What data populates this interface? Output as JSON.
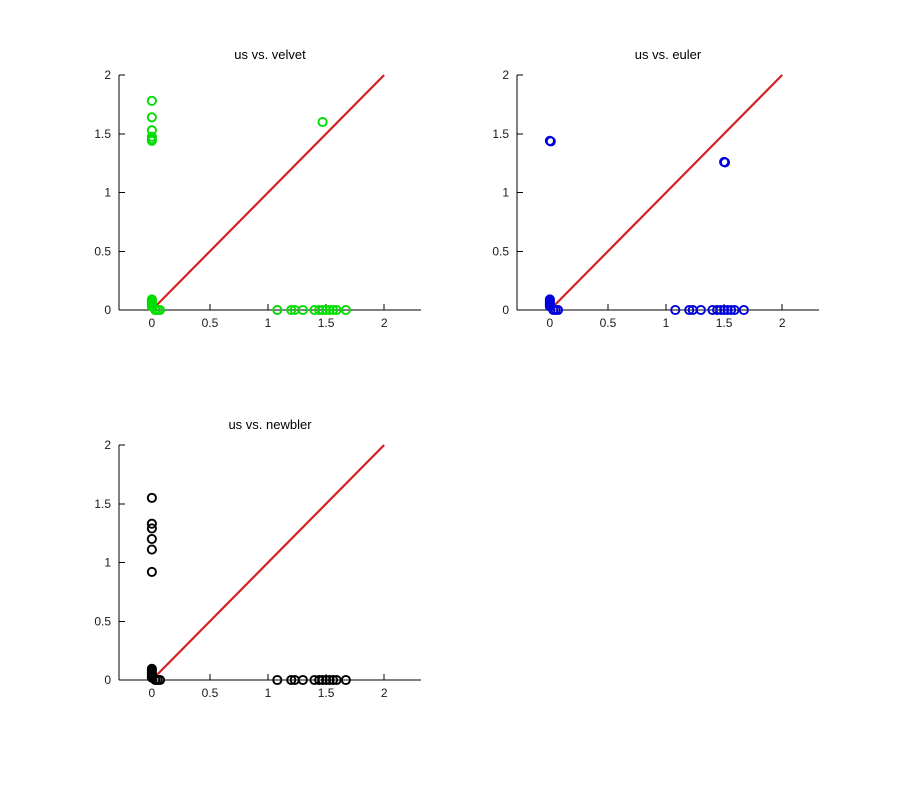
{
  "figure": {
    "background": "#ffffff",
    "axis_color": "#000000",
    "tick_label_color": "#1a1a1a",
    "layout": "2x2 subplot grid, bottom-right cell empty"
  },
  "chart_data": [
    {
      "type": "scatter",
      "title": "us vs. velvet",
      "xlabel": "",
      "ylabel": "",
      "xlim": [
        -0.283,
        2.317
      ],
      "ylim": [
        0,
        2
      ],
      "xticks": [
        0,
        0.5,
        1,
        1.5,
        2
      ],
      "xtick_labels": [
        "0",
        "0.5",
        "1",
        "1.5",
        "2"
      ],
      "yticks": [
        0,
        0.5,
        1,
        1.5,
        2
      ],
      "ytick_labels": [
        "0",
        "0.5",
        "1",
        "1.5",
        "2"
      ],
      "grid": false,
      "legend": null,
      "marker": {
        "shape": "hollow-circle",
        "color": "#00DD00"
      },
      "identity_line": {
        "from": [
          0,
          0
        ],
        "to": [
          2,
          2
        ],
        "color": "#D42121"
      },
      "points": [
        [
          0,
          0.03
        ],
        [
          0,
          0.045
        ],
        [
          0,
          0.06
        ],
        [
          0,
          0.075
        ],
        [
          0,
          0.09
        ],
        [
          0.03,
          0
        ],
        [
          0.05,
          0
        ],
        [
          0.07,
          0
        ],
        [
          1.08,
          0
        ],
        [
          1.2,
          0
        ],
        [
          1.23,
          0
        ],
        [
          1.3,
          0
        ],
        [
          1.4,
          0
        ],
        [
          1.44,
          0
        ],
        [
          1.47,
          0
        ],
        [
          1.5,
          0
        ],
        [
          1.53,
          0
        ],
        [
          1.56,
          0
        ],
        [
          1.59,
          0
        ],
        [
          1.67,
          0
        ],
        [
          0,
          1.44
        ],
        [
          0,
          1.455
        ],
        [
          0,
          1.475
        ],
        [
          0,
          1.53
        ],
        [
          0,
          1.64
        ],
        [
          0,
          1.78
        ],
        [
          1.47,
          1.6
        ]
      ]
    },
    {
      "type": "scatter",
      "title": "us vs. euler",
      "xlabel": "",
      "ylabel": "",
      "xlim": [
        -0.283,
        2.317
      ],
      "ylim": [
        0,
        2
      ],
      "xticks": [
        0,
        0.5,
        1,
        1.5,
        2
      ],
      "xtick_labels": [
        "0",
        "0.5",
        "1",
        "1.5",
        "2"
      ],
      "yticks": [
        0,
        0.5,
        1,
        1.5,
        2
      ],
      "ytick_labels": [
        "0",
        "0.5",
        "1",
        "1.5",
        "2"
      ],
      "grid": false,
      "legend": null,
      "marker": {
        "shape": "hollow-circle",
        "color": "#0000DD"
      },
      "identity_line": {
        "from": [
          0,
          0
        ],
        "to": [
          2,
          2
        ],
        "color": "#D42121"
      },
      "points": [
        [
          0,
          0.03
        ],
        [
          0,
          0.045
        ],
        [
          0,
          0.06
        ],
        [
          0,
          0.075
        ],
        [
          0,
          0.09
        ],
        [
          0.03,
          0
        ],
        [
          0.05,
          0
        ],
        [
          0.07,
          0
        ],
        [
          1.08,
          0
        ],
        [
          1.2,
          0
        ],
        [
          1.23,
          0
        ],
        [
          1.3,
          0
        ],
        [
          1.4,
          0
        ],
        [
          1.44,
          0
        ],
        [
          1.47,
          0
        ],
        [
          1.5,
          0
        ],
        [
          1.53,
          0
        ],
        [
          1.56,
          0
        ],
        [
          1.59,
          0
        ],
        [
          1.67,
          0
        ],
        [
          0,
          1.44
        ],
        [
          0.008,
          1.435
        ],
        [
          1.5,
          1.26
        ],
        [
          1.508,
          1.256
        ]
      ]
    },
    {
      "type": "scatter",
      "title": "us vs. newbler",
      "xlabel": "",
      "ylabel": "",
      "xlim": [
        -0.283,
        2.317
      ],
      "ylim": [
        0,
        2
      ],
      "xticks": [
        0,
        0.5,
        1,
        1.5,
        2
      ],
      "xtick_labels": [
        "0",
        "0.5",
        "1",
        "1.5",
        "2"
      ],
      "yticks": [
        0,
        0.5,
        1,
        1.5,
        2
      ],
      "ytick_labels": [
        "0",
        "0.5",
        "1",
        "1.5",
        "2"
      ],
      "grid": false,
      "legend": null,
      "marker": {
        "shape": "hollow-circle",
        "color": "#000000"
      },
      "identity_line": {
        "from": [
          0,
          0
        ],
        "to": [
          2,
          2
        ],
        "color": "#D42121"
      },
      "points": [
        [
          0,
          0.02
        ],
        [
          0,
          0.035
        ],
        [
          0,
          0.05
        ],
        [
          0,
          0.065
        ],
        [
          0,
          0.08
        ],
        [
          0,
          0.095
        ],
        [
          0.03,
          0
        ],
        [
          0.05,
          0
        ],
        [
          0.07,
          0
        ],
        [
          1.08,
          0
        ],
        [
          1.2,
          0
        ],
        [
          1.23,
          0
        ],
        [
          1.3,
          0
        ],
        [
          1.4,
          0
        ],
        [
          1.44,
          0
        ],
        [
          1.47,
          0
        ],
        [
          1.5,
          0
        ],
        [
          1.53,
          0
        ],
        [
          1.56,
          0
        ],
        [
          1.59,
          0
        ],
        [
          1.67,
          0
        ],
        [
          0,
          0.92
        ],
        [
          0,
          1.11
        ],
        [
          0,
          1.2
        ],
        [
          0,
          1.29
        ],
        [
          0,
          1.33
        ],
        [
          0,
          1.55
        ]
      ]
    }
  ]
}
